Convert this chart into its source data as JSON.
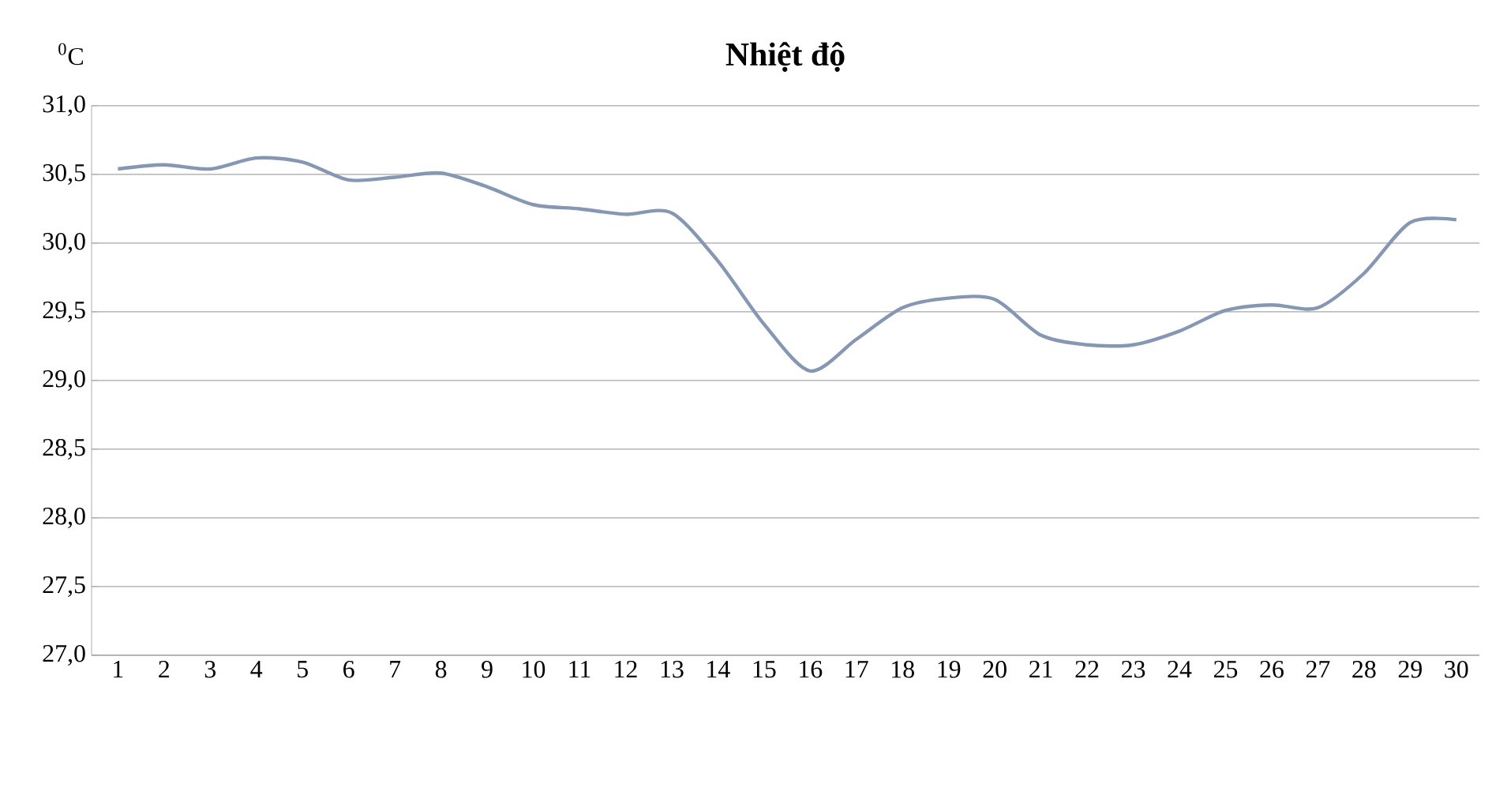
{
  "chart_data": {
    "type": "line",
    "title": "Nhiệt độ",
    "ylabel": "$^{0}$C",
    "categories": [
      "1",
      "2",
      "3",
      "4",
      "5",
      "6",
      "7",
      "8",
      "9",
      "10",
      "11",
      "12",
      "13",
      "14",
      "15",
      "16",
      "17",
      "18",
      "19",
      "20",
      "21",
      "22",
      "23",
      "24",
      "25",
      "26",
      "27",
      "28",
      "29",
      "30"
    ],
    "series": [
      {
        "color": "#8597b3",
        "values": [
          30.54,
          30.57,
          30.54,
          30.62,
          30.59,
          30.46,
          30.48,
          30.51,
          30.41,
          30.28,
          30.25,
          30.21,
          30.22,
          29.87,
          29.41,
          29.07,
          29.3,
          29.53,
          29.6,
          29.59,
          29.33,
          29.26,
          29.26,
          29.36,
          29.51,
          29.55,
          29.53,
          29.78,
          30.15,
          30.17
        ]
      }
    ],
    "ylim": [
      27,
      31
    ],
    "yticks": [
      {
        "value": 27,
        "label": "27,0"
      },
      {
        "value": 27.5,
        "label": "27,5"
      },
      {
        "value": 28,
        "label": "28,0"
      },
      {
        "value": 28.5,
        "label": "28,5"
      },
      {
        "value": 29,
        "label": "29,0"
      },
      {
        "value": 29.5,
        "label": "29,5"
      },
      {
        "value": 30,
        "label": "30,0"
      },
      {
        "value": 30.5,
        "label": "30,5"
      },
      {
        "value": 31,
        "label": "31,0"
      }
    ],
    "grid": "y",
    "marker": "none",
    "line_style": "solid",
    "legend": false
  }
}
